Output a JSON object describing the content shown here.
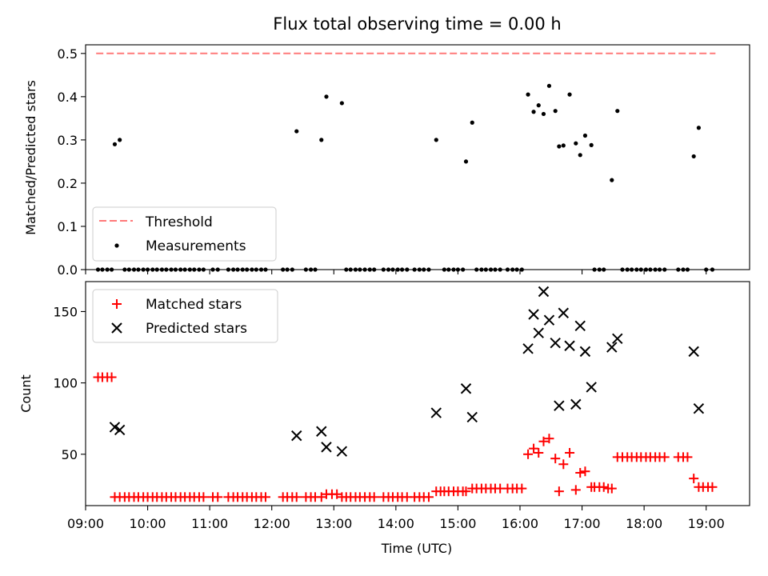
{
  "chart_data": [
    {
      "type": "scatter",
      "title": "Flux total observing time = 0.00 h",
      "ylabel": "Matched/Predicted stars",
      "xlim": [
        9.0,
        19.7
      ],
      "ylim": [
        0,
        0.52
      ],
      "yticks": [
        0.0,
        0.1,
        0.2,
        0.3,
        0.4,
        0.5
      ],
      "ytick_labels": [
        "0.0",
        "0.1",
        "0.2",
        "0.3",
        "0.4",
        "0.5"
      ],
      "legend_position": "lower-left",
      "threshold": {
        "name": "Threshold",
        "value": 0.5,
        "x": [
          9.17,
          19.15
        ],
        "color": "#ff7a7a"
      },
      "measurements": {
        "name": "Measurements",
        "color": "#000000",
        "points": [
          [
            9.47,
            0.29
          ],
          [
            9.55,
            0.3
          ],
          [
            12.4,
            0.32
          ],
          [
            12.8,
            0.3
          ],
          [
            12.88,
            0.4
          ],
          [
            13.13,
            0.385
          ],
          [
            14.65,
            0.3
          ],
          [
            15.13,
            0.25
          ],
          [
            15.23,
            0.34
          ],
          [
            16.13,
            0.405
          ],
          [
            16.22,
            0.365
          ],
          [
            16.3,
            0.38
          ],
          [
            16.38,
            0.36
          ],
          [
            16.47,
            0.425
          ],
          [
            16.57,
            0.367
          ],
          [
            16.63,
            0.285
          ],
          [
            16.7,
            0.287
          ],
          [
            16.8,
            0.405
          ],
          [
            16.9,
            0.292
          ],
          [
            16.97,
            0.265
          ],
          [
            17.05,
            0.31
          ],
          [
            17.15,
            0.288
          ],
          [
            17.48,
            0.207
          ],
          [
            17.57,
            0.367
          ],
          [
            18.8,
            0.262
          ],
          [
            18.88,
            0.328
          ]
        ],
        "zero_x": [
          9.2,
          9.27,
          9.35,
          9.42,
          9.63,
          9.7,
          9.78,
          9.85,
          9.93,
          10.0,
          10.08,
          10.15,
          10.23,
          10.3,
          10.38,
          10.45,
          10.53,
          10.6,
          10.68,
          10.75,
          10.83,
          10.9,
          11.05,
          11.13,
          11.3,
          11.38,
          11.45,
          11.53,
          11.6,
          11.68,
          11.75,
          11.83,
          11.9,
          12.18,
          12.25,
          12.33,
          12.55,
          12.63,
          12.7,
          13.2,
          13.27,
          13.35,
          13.42,
          13.5,
          13.58,
          13.65,
          13.8,
          13.88,
          13.95,
          14.03,
          14.1,
          14.18,
          14.3,
          14.38,
          14.45,
          14.53,
          14.78,
          14.85,
          14.93,
          15.0,
          15.08,
          15.3,
          15.38,
          15.45,
          15.53,
          15.6,
          15.68,
          15.8,
          15.88,
          15.95,
          16.03,
          17.2,
          17.28,
          17.35,
          17.65,
          17.73,
          17.8,
          17.88,
          17.95,
          18.03,
          18.1,
          18.18,
          18.25,
          18.33,
          18.55,
          18.63,
          18.7,
          19.0,
          19.1
        ]
      }
    },
    {
      "type": "scatter",
      "xlabel": "Time (UTC)",
      "ylabel": "Count",
      "xlim": [
        9.0,
        19.7
      ],
      "ylim": [
        14,
        171
      ],
      "xticks": [
        9,
        10,
        11,
        12,
        13,
        14,
        15,
        16,
        17,
        18,
        19
      ],
      "xtick_labels": [
        "09:00",
        "10:00",
        "11:00",
        "12:00",
        "13:00",
        "14:00",
        "15:00",
        "16:00",
        "17:00",
        "18:00",
        "19:00"
      ],
      "yticks": [
        50,
        100,
        150
      ],
      "ytick_labels": [
        "50",
        "100",
        "150"
      ],
      "legend_position": "upper-left",
      "series": [
        {
          "name": "Matched stars",
          "marker": "plus",
          "color": "#ff0000",
          "points": [
            [
              9.2,
              104
            ],
            [
              9.27,
              104
            ],
            [
              9.35,
              104
            ],
            [
              9.42,
              104
            ],
            [
              9.47,
              20
            ],
            [
              9.55,
              20
            ],
            [
              9.63,
              20
            ],
            [
              9.7,
              20
            ],
            [
              9.78,
              20
            ],
            [
              9.85,
              20
            ],
            [
              9.93,
              20
            ],
            [
              10.0,
              20
            ],
            [
              10.08,
              20
            ],
            [
              10.15,
              20
            ],
            [
              10.23,
              20
            ],
            [
              10.3,
              20
            ],
            [
              10.38,
              20
            ],
            [
              10.45,
              20
            ],
            [
              10.53,
              20
            ],
            [
              10.6,
              20
            ],
            [
              10.68,
              20
            ],
            [
              10.75,
              20
            ],
            [
              10.83,
              20
            ],
            [
              10.9,
              20
            ],
            [
              11.05,
              20
            ],
            [
              11.13,
              20
            ],
            [
              11.3,
              20
            ],
            [
              11.38,
              20
            ],
            [
              11.45,
              20
            ],
            [
              11.53,
              20
            ],
            [
              11.6,
              20
            ],
            [
              11.68,
              20
            ],
            [
              11.75,
              20
            ],
            [
              11.83,
              20
            ],
            [
              11.9,
              20
            ],
            [
              12.18,
              20
            ],
            [
              12.25,
              20
            ],
            [
              12.33,
              20
            ],
            [
              12.4,
              20
            ],
            [
              12.55,
              20
            ],
            [
              12.63,
              20
            ],
            [
              12.7,
              20
            ],
            [
              12.8,
              20
            ],
            [
              12.88,
              22
            ],
            [
              12.97,
              22
            ],
            [
              13.05,
              22
            ],
            [
              13.13,
              20
            ],
            [
              13.2,
              20
            ],
            [
              13.27,
              20
            ],
            [
              13.35,
              20
            ],
            [
              13.42,
              20
            ],
            [
              13.5,
              20
            ],
            [
              13.58,
              20
            ],
            [
              13.65,
              20
            ],
            [
              13.8,
              20
            ],
            [
              13.88,
              20
            ],
            [
              13.95,
              20
            ],
            [
              14.03,
              20
            ],
            [
              14.1,
              20
            ],
            [
              14.18,
              20
            ],
            [
              14.3,
              20
            ],
            [
              14.38,
              20
            ],
            [
              14.45,
              20
            ],
            [
              14.53,
              20
            ],
            [
              14.65,
              24
            ],
            [
              14.72,
              24
            ],
            [
              14.78,
              24
            ],
            [
              14.85,
              24
            ],
            [
              14.93,
              24
            ],
            [
              15.0,
              24
            ],
            [
              15.08,
              24
            ],
            [
              15.13,
              24
            ],
            [
              15.23,
              26
            ],
            [
              15.3,
              26
            ],
            [
              15.38,
              26
            ],
            [
              15.45,
              26
            ],
            [
              15.53,
              26
            ],
            [
              15.6,
              26
            ],
            [
              15.68,
              26
            ],
            [
              15.8,
              26
            ],
            [
              15.88,
              26
            ],
            [
              15.95,
              26
            ],
            [
              16.03,
              26
            ],
            [
              16.13,
              50
            ],
            [
              16.22,
              54
            ],
            [
              16.3,
              51
            ],
            [
              16.38,
              59
            ],
            [
              16.47,
              61
            ],
            [
              16.57,
              47
            ],
            [
              16.63,
              24
            ],
            [
              16.7,
              43
            ],
            [
              16.8,
              51
            ],
            [
              16.9,
              25
            ],
            [
              16.97,
              37
            ],
            [
              17.05,
              38
            ],
            [
              17.15,
              27
            ],
            [
              17.2,
              27
            ],
            [
              17.28,
              27
            ],
            [
              17.35,
              27
            ],
            [
              17.42,
              26
            ],
            [
              17.48,
              26
            ],
            [
              17.57,
              48
            ],
            [
              17.65,
              48
            ],
            [
              17.73,
              48
            ],
            [
              17.8,
              48
            ],
            [
              17.88,
              48
            ],
            [
              17.95,
              48
            ],
            [
              18.03,
              48
            ],
            [
              18.1,
              48
            ],
            [
              18.18,
              48
            ],
            [
              18.25,
              48
            ],
            [
              18.33,
              48
            ],
            [
              18.55,
              48
            ],
            [
              18.63,
              48
            ],
            [
              18.7,
              48
            ],
            [
              18.8,
              33
            ],
            [
              18.88,
              27
            ],
            [
              18.95,
              27
            ],
            [
              19.03,
              27
            ],
            [
              19.1,
              27
            ]
          ]
        },
        {
          "name": "Predicted stars",
          "marker": "x",
          "color": "#000000",
          "points": [
            [
              9.47,
              69
            ],
            [
              9.55,
              67
            ],
            [
              12.4,
              63
            ],
            [
              12.8,
              66
            ],
            [
              12.88,
              55
            ],
            [
              13.13,
              52
            ],
            [
              14.65,
              79
            ],
            [
              15.13,
              96
            ],
            [
              15.23,
              76
            ],
            [
              16.13,
              124
            ],
            [
              16.22,
              148
            ],
            [
              16.3,
              135
            ],
            [
              16.38,
              164
            ],
            [
              16.47,
              144
            ],
            [
              16.57,
              128
            ],
            [
              16.63,
              84
            ],
            [
              16.7,
              149
            ],
            [
              16.8,
              126
            ],
            [
              16.9,
              85
            ],
            [
              16.97,
              140
            ],
            [
              17.05,
              122
            ],
            [
              17.15,
              97
            ],
            [
              17.48,
              125
            ],
            [
              17.57,
              131
            ],
            [
              18.8,
              122
            ],
            [
              18.88,
              82
            ]
          ]
        }
      ]
    }
  ]
}
